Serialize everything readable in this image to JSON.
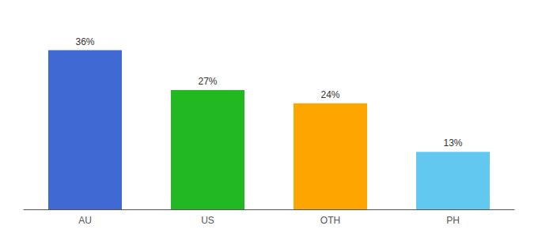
{
  "chart_data": {
    "type": "bar",
    "categories": [
      "AU",
      "US",
      "OTH",
      "PH"
    ],
    "values": [
      36,
      27,
      24,
      13
    ],
    "value_labels": [
      "36%",
      "27%",
      "24%",
      "13%"
    ],
    "colors": [
      "#4169D4",
      "#22B822",
      "#FFA500",
      "#62C8F0"
    ],
    "ylim": [
      0,
      42
    ],
    "data_labels": true,
    "tick_labels": "x",
    "grid": false
  }
}
